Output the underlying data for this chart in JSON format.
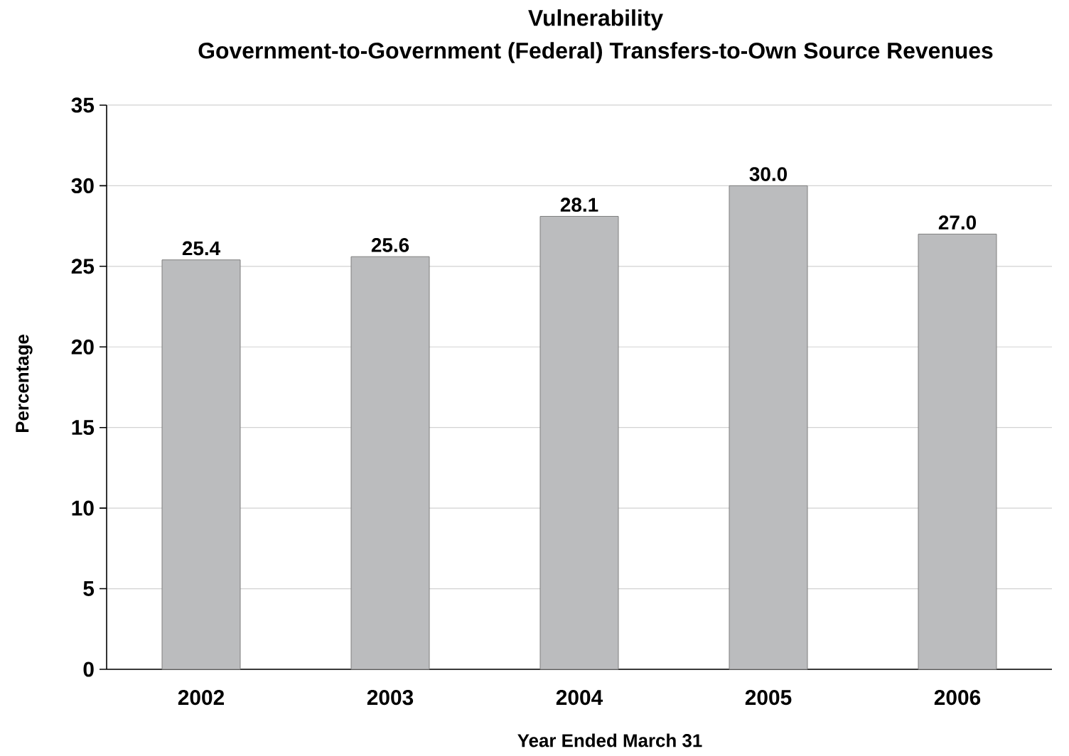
{
  "chart_data": {
    "type": "bar",
    "title": "Vulnerability",
    "subtitle": "Government-to-Government (Federal) Transfers-to-Own Source Revenues",
    "xlabel": "Year Ended March 31",
    "ylabel": "Percentage",
    "categories": [
      "2002",
      "2003",
      "2004",
      "2005",
      "2006"
    ],
    "values": [
      25.4,
      25.6,
      28.1,
      30.0,
      27.0
    ],
    "value_labels": [
      "25.4",
      "25.6",
      "28.1",
      "30.0",
      "27.0"
    ],
    "color": "#bbbcbe",
    "ylim": [
      0,
      35
    ],
    "yticks": [
      0,
      5,
      10,
      15,
      20,
      25,
      30,
      35
    ],
    "grid": "y"
  }
}
